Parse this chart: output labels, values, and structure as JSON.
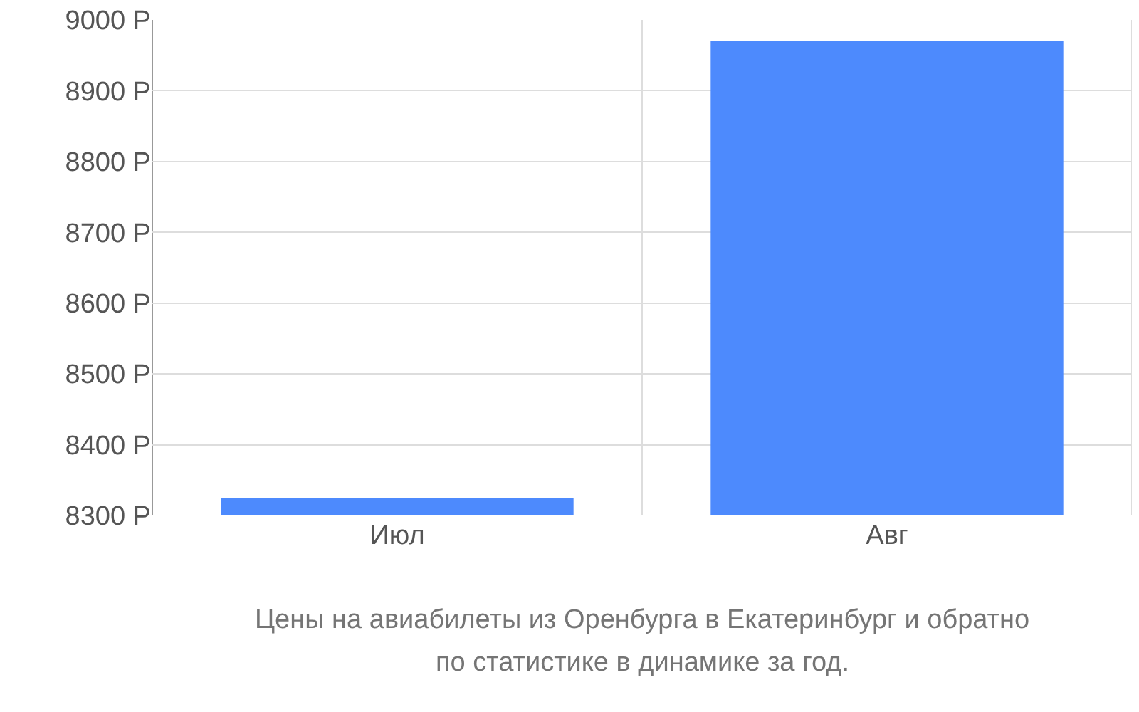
{
  "chart_data": {
    "type": "bar",
    "categories": [
      "Июл",
      "Авг"
    ],
    "values": [
      8325,
      8970
    ],
    "color": "#4d8afd",
    "ylim": [
      8300,
      9000
    ],
    "yticks": [
      {
        "value": 8300,
        "label": "8300 Р"
      },
      {
        "value": 8400,
        "label": "8400 Р"
      },
      {
        "value": 8500,
        "label": "8500 Р"
      },
      {
        "value": 8600,
        "label": "8600 Р"
      },
      {
        "value": 8700,
        "label": "8700 Р"
      },
      {
        "value": 8800,
        "label": "8800 Р"
      },
      {
        "value": 8900,
        "label": "8900 Р"
      },
      {
        "value": 9000,
        "label": "9000 Р"
      }
    ],
    "grid": true,
    "annotations": [
      "Цены на авиабилеты из Оренбурга в Екатеринбург и обратно",
      "по статистике в динамике за год."
    ]
  }
}
